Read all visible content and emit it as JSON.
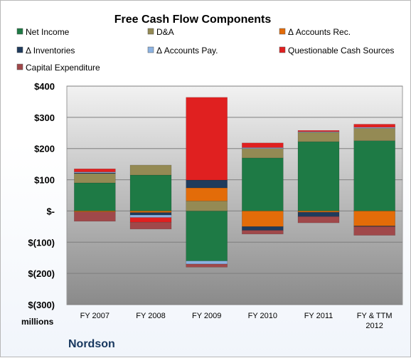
{
  "chart_data": {
    "type": "bar",
    "stacked": true,
    "title": "Free Cash Flow Components",
    "units_label": "millions",
    "company": "Nordson",
    "categories": [
      "FY 2007",
      "FY 2008",
      "FY 2009",
      "FY 2010",
      "FY 2011",
      "FY & TTM 2012"
    ],
    "category_lines": [
      [
        "FY 2007"
      ],
      [
        "FY 2008"
      ],
      [
        "FY 2009"
      ],
      [
        "FY 2010"
      ],
      [
        "FY 2011"
      ],
      [
        "FY & TTM",
        "2012"
      ]
    ],
    "ylim": [
      -300,
      400
    ],
    "yticks": [
      400,
      300,
      200,
      100,
      0,
      -100,
      -200,
      -300
    ],
    "ytick_labels": [
      "$400",
      "$300",
      "$200",
      "$100",
      "$-",
      "$(100)",
      "$(200)",
      "$(300)"
    ],
    "grid": true,
    "legend_position": "top",
    "series": [
      {
        "name": "Net Income",
        "color": "#1e7a45",
        "values": [
          90,
          115,
          -160,
          170,
          222,
          225
        ]
      },
      {
        "name": "D&A",
        "color": "#948a54",
        "values": [
          30,
          32,
          32,
          30,
          30,
          40
        ]
      },
      {
        "name": "Δ Accounts Rec.",
        "color": "#e36c09",
        "values": [
          -3,
          -5,
          42,
          -50,
          -4,
          -48
        ]
      },
      {
        "name": "Δ Inventories",
        "color": "#1f3b5c",
        "values": [
          2,
          -8,
          25,
          -12,
          -14,
          -2
        ]
      },
      {
        "name": "Δ Accounts Pay.",
        "color": "#8db3e2",
        "values": [
          3,
          -8,
          -10,
          3,
          2,
          3
        ]
      },
      {
        "name": "Questionable Cash Sources",
        "color": "#e02020",
        "values": [
          10,
          -15,
          265,
          15,
          4,
          10
        ]
      },
      {
        "name": "Capital Expenditure",
        "color": "#a0484a",
        "values": [
          -30,
          -22,
          -10,
          -12,
          -20,
          -28
        ]
      }
    ]
  }
}
